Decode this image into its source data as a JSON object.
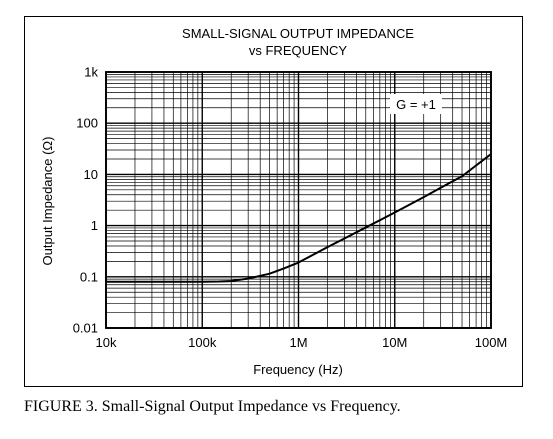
{
  "caption": "FIGURE 3. Small-Signal Output Impedance vs Frequency.",
  "chart_data": {
    "type": "line",
    "title": "SMALL-SIGNAL OUTPUT IMPEDANCE",
    "subtitle": "vs FREQUENCY",
    "xlabel": "Frequency (Hz)",
    "ylabel": "Output Impedance (Ω)",
    "x_scale": "log",
    "y_scale": "log",
    "xlim": [
      10000,
      100000000
    ],
    "ylim": [
      0.01,
      1000
    ],
    "x_ticks": [
      10000,
      100000,
      1000000,
      10000000,
      100000000
    ],
    "x_tick_labels": [
      "10k",
      "100k",
      "1M",
      "10M",
      "100M"
    ],
    "y_ticks": [
      0.01,
      0.1,
      1,
      10,
      100,
      1000
    ],
    "y_tick_labels": [
      "0.01",
      "0.1",
      "1",
      "10",
      "100",
      "1k"
    ],
    "grid": true,
    "annotation": "G = +1",
    "series": [
      {
        "color": "#000000",
        "x": [
          10000,
          30000,
          60000,
          100000,
          150000,
          200000,
          300000,
          500000,
          700000,
          1000000,
          2000000,
          3000000,
          5000000,
          10000000,
          20000000,
          30000000,
          50000000,
          100000000
        ],
        "y": [
          0.08,
          0.08,
          0.08,
          0.08,
          0.081,
          0.083,
          0.092,
          0.115,
          0.145,
          0.19,
          0.38,
          0.56,
          0.92,
          1.8,
          3.6,
          5.5,
          9.2,
          25
        ]
      }
    ]
  }
}
